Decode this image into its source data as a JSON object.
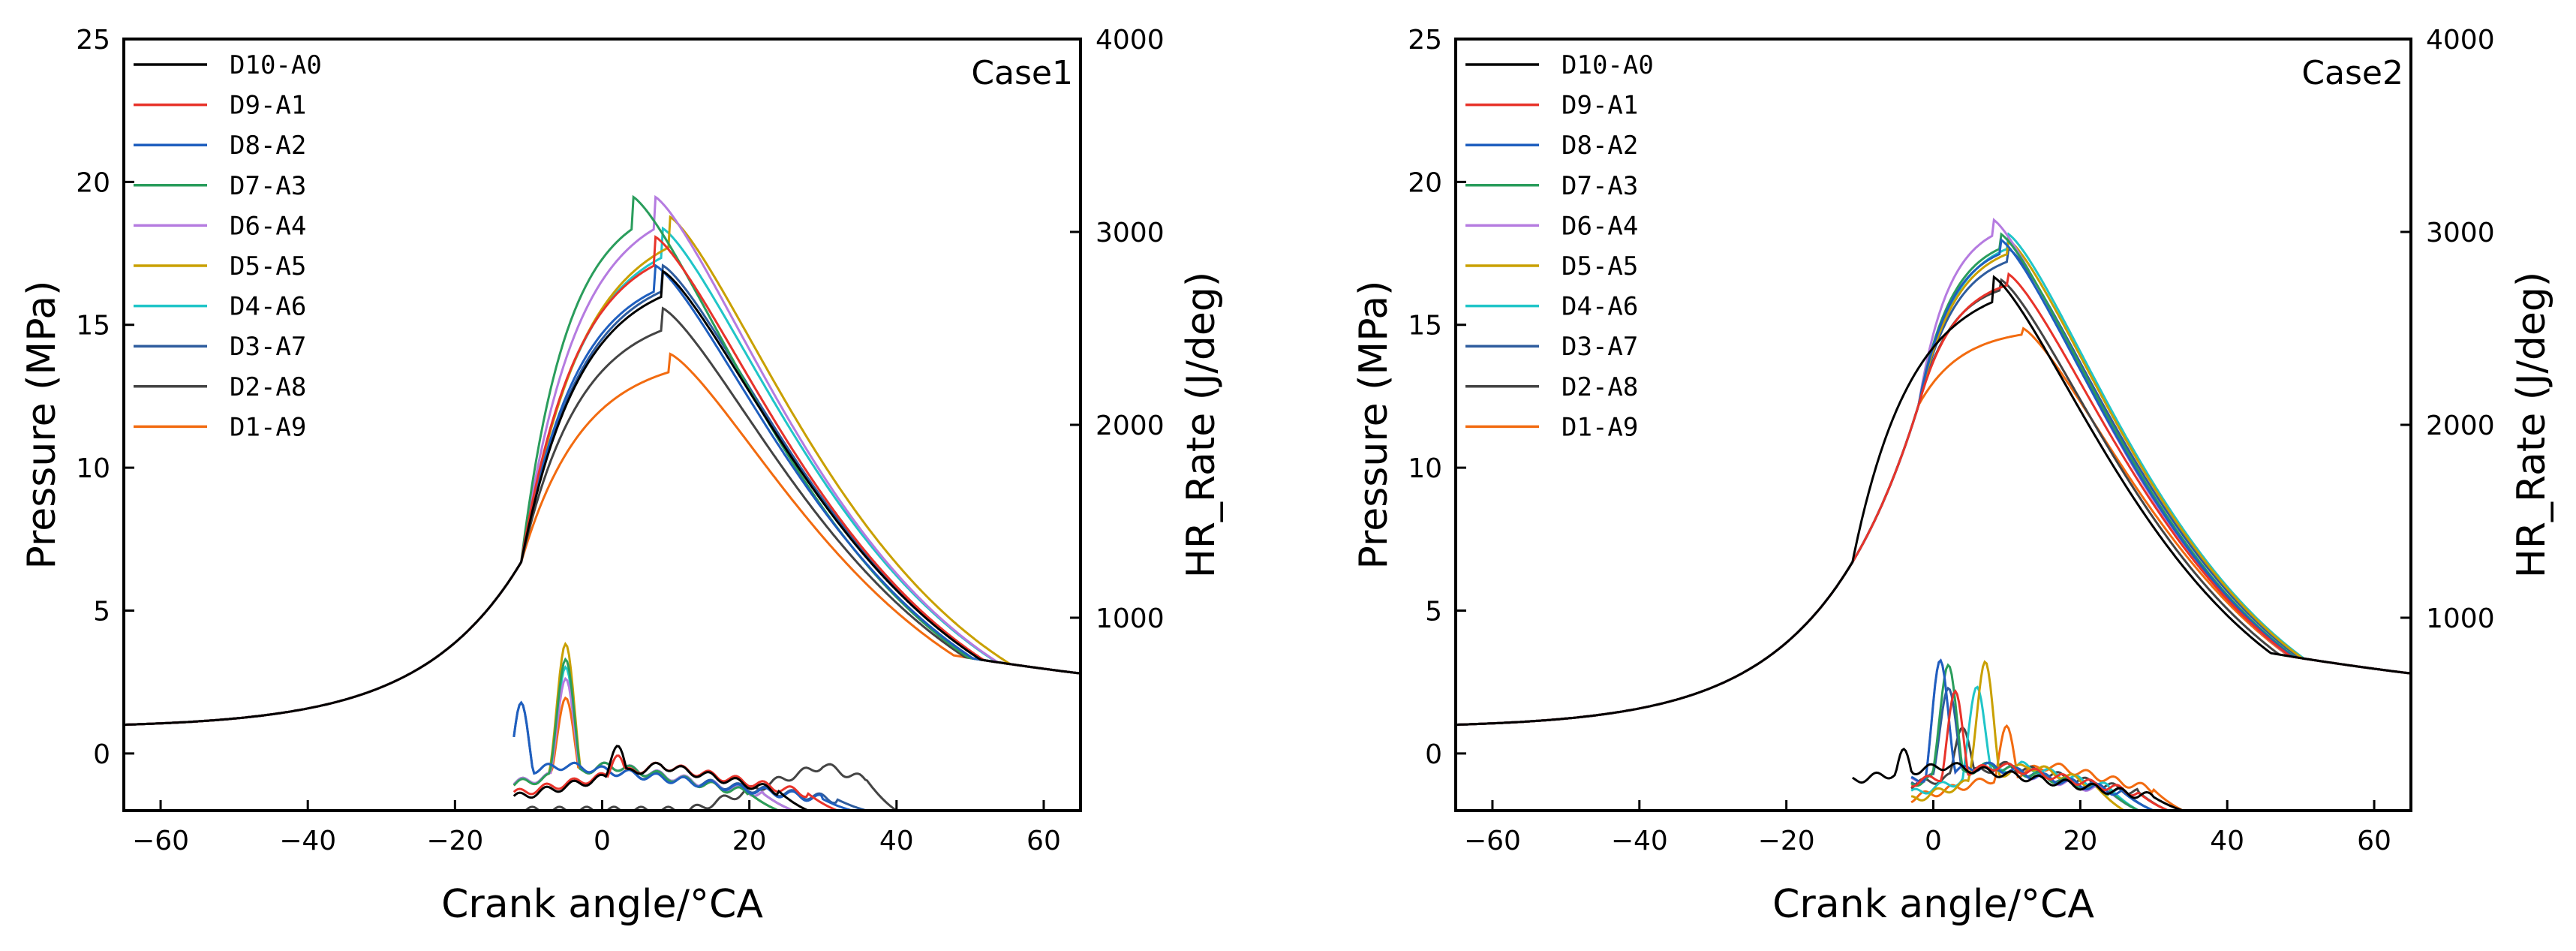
{
  "colors": {
    "D10-A0": "#000000",
    "D9-A1": "#e8332a",
    "D8-A2": "#1f5fbf",
    "D7-A3": "#2a9d5c",
    "D6-A4": "#b57be0",
    "D5-A5": "#c9a000",
    "D4-A6": "#20c5c8",
    "D3-A7": "#2e5c9e",
    "D2-A8": "#444444",
    "D1-A9": "#f26b10"
  },
  "chart_data": [
    {
      "type": "line",
      "label": "Case1",
      "xlabel": "Crank angle/°CA",
      "ylabel": "Pressure (MPa)",
      "y2label": "HR_Rate (J/deg)",
      "xlim": [
        -65,
        65
      ],
      "ylim": [
        -2,
        25
      ],
      "y2lim": [
        0,
        4000
      ],
      "xticks": [
        "−60",
        "−40",
        "−20",
        "0",
        "20",
        "40",
        "60"
      ],
      "xtick_values": [
        -60,
        -40,
        -20,
        0,
        20,
        40,
        60
      ],
      "yticks": [
        "0",
        "5",
        "10",
        "15",
        "20",
        "25"
      ],
      "ytick_values": [
        0,
        5,
        10,
        15,
        20,
        25
      ],
      "y2ticks": [
        "1000",
        "2000",
        "3000",
        "4000"
      ],
      "y2tick_values": [
        1000,
        2000,
        3000,
        4000
      ],
      "legend_position": "top-left",
      "series": [
        {
          "name": "D10-A0",
          "pressure_peak": [
            8,
            16.9
          ],
          "hr_peak": [
            2,
            350
          ],
          "hr_end": 24
        },
        {
          "name": "D9-A1",
          "pressure_peak": [
            7,
            18.1
          ],
          "hr_peak": [
            2,
            300
          ],
          "hr_end": 28
        },
        {
          "name": "D8-A2",
          "pressure_peak": [
            7,
            17.1
          ],
          "hr_peak": [
            -11,
            540
          ],
          "hr_end": 30
        },
        {
          "name": "D7-A3",
          "pressure_peak": [
            4,
            19.5
          ],
          "hr_peak": [
            -5,
            800
          ],
          "hr_end": 20
        },
        {
          "name": "D6-A4",
          "pressure_peak": [
            7,
            19.5
          ],
          "hr_peak": [
            -5,
            700
          ],
          "hr_end": 22
        },
        {
          "name": "D5-A5",
          "pressure_peak": [
            9,
            18.8
          ],
          "hr_peak": [
            -5,
            880
          ],
          "hr_end": 20
        },
        {
          "name": "D4-A6",
          "pressure_peak": [
            8,
            18.4
          ],
          "hr_peak": [
            -5,
            760
          ],
          "hr_end": 22
        },
        {
          "name": "D3-A7",
          "pressure_peak": [
            8,
            17.1
          ],
          "hr_peak": [
            -11,
            540
          ],
          "hr_end": 32
        },
        {
          "name": "D2-A8",
          "pressure_peak": [
            8,
            15.6
          ],
          "hr_peak": [
            24,
            140
          ],
          "hr_end": 36
        },
        {
          "name": "D1-A9",
          "pressure_peak": [
            9,
            14.0
          ],
          "hr_peak": [
            -5,
            600
          ],
          "hr_end": 22
        }
      ]
    },
    {
      "type": "line",
      "label": "Case2",
      "xlabel": "Crank angle/°CA",
      "ylabel": "Pressure (MPa)",
      "y2label": "HR_Rate (J/deg)",
      "xlim": [
        -65,
        65
      ],
      "ylim": [
        -2,
        25
      ],
      "y2lim": [
        0,
        4000
      ],
      "xticks": [
        "−60",
        "−40",
        "−20",
        "0",
        "20",
        "40",
        "60"
      ],
      "xtick_values": [
        -60,
        -40,
        -20,
        0,
        20,
        40,
        60
      ],
      "yticks": [
        "0",
        "5",
        "10",
        "15",
        "20",
        "25"
      ],
      "ytick_values": [
        0,
        5,
        10,
        15,
        20,
        25
      ],
      "y2ticks": [
        "1000",
        "2000",
        "3000",
        "4000"
      ],
      "y2tick_values": [
        1000,
        2000,
        3000,
        4000
      ],
      "legend_position": "top-left",
      "series": [
        {
          "name": "D10-A0",
          "pressure_peak": [
            8,
            16.7
          ],
          "hr_peak": [
            -4,
            300
          ],
          "hr_end": 30
        },
        {
          "name": "D9-A1",
          "pressure_peak": [
            10,
            16.8
          ],
          "hr_peak": [
            3,
            600
          ],
          "hr_end": 28
        },
        {
          "name": "D8-A2",
          "pressure_peak": [
            9,
            18.0
          ],
          "hr_peak": [
            1,
            770
          ],
          "hr_end": 26
        },
        {
          "name": "D7-A3",
          "pressure_peak": [
            9,
            18.2
          ],
          "hr_peak": [
            2,
            770
          ],
          "hr_end": 24
        },
        {
          "name": "D6-A4",
          "pressure_peak": [
            8,
            18.7
          ],
          "hr_peak": [
            1,
            770
          ],
          "hr_end": 24
        },
        {
          "name": "D5-A5",
          "pressure_peak": [
            10,
            18.0
          ],
          "hr_peak": [
            7,
            770
          ],
          "hr_end": 22
        },
        {
          "name": "D4-A6",
          "pressure_peak": [
            10,
            18.2
          ],
          "hr_peak": [
            6,
            650
          ],
          "hr_end": 24
        },
        {
          "name": "D3-A7",
          "pressure_peak": [
            10,
            17.7
          ],
          "hr_peak": [
            2,
            650
          ],
          "hr_end": 26
        },
        {
          "name": "D2-A8",
          "pressure_peak": [
            9,
            16.6
          ],
          "hr_peak": [
            4,
            450
          ],
          "hr_end": 28
        },
        {
          "name": "D1-A9",
          "pressure_peak": [
            12,
            14.9
          ],
          "hr_peak": [
            10,
            420
          ],
          "hr_end": 30
        }
      ]
    }
  ]
}
